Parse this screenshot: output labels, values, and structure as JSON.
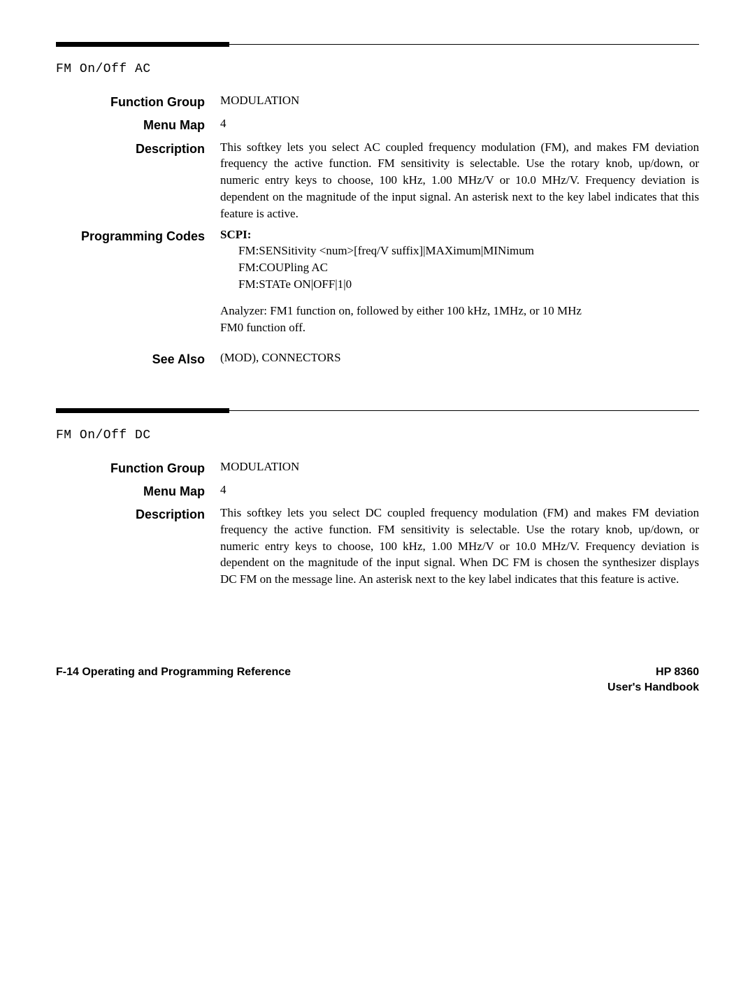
{
  "section1": {
    "title": "FM On/Off AC",
    "functionGroup": {
      "label": "Function Group",
      "value": "MODULATION"
    },
    "menuMap": {
      "label": "Menu Map",
      "value": "4"
    },
    "description": {
      "label": "Description",
      "text": "This softkey lets you select AC coupled frequency modulation (FM), and makes FM deviation frequency the active function. FM sensitivity is selectable. Use the rotary knob, up/down, or numeric entry keys to choose, 100 kHz, 1.00 MHz/V or 10.0 MHz/V. Frequency deviation is dependent on the magnitude of the input signal. An asterisk next to the key label indicates that this feature is active."
    },
    "programmingCodes": {
      "label": "Programming Codes",
      "scpiLabel": "SCPI:",
      "scpi1": "FM:SENSitivity <num>[freq/V suffix]|MAXimum|MINimum",
      "scpi2": "FM:COUPling AC",
      "scpi3": "FM:STATe ON|OFF|1|0",
      "analyzer1": "Analyzer: FM1 function on, followed by either 100 kHz, 1MHz, or 10 MHz",
      "analyzer2": "FM0 function off."
    },
    "seeAlso": {
      "label": "See Also",
      "value": "(MOD), CONNECTORS"
    }
  },
  "section2": {
    "title": "FM On/Off DC",
    "functionGroup": {
      "label": "Function Group",
      "value": "MODULATION"
    },
    "menuMap": {
      "label": "Menu Map",
      "value": "4"
    },
    "description": {
      "label": "Description",
      "text": "This softkey lets you select DC coupled frequency modulation (FM) and makes FM deviation frequency the active function. FM sensitivity is selectable. Use the rotary knob, up/down, or numeric entry keys to choose, 100 kHz, 1.00 MHz/V or 10.0 MHz/V. Frequency deviation is dependent on the magnitude of the input signal. When DC FM is chosen the synthesizer displays DC FM on the message line. An asterisk next to the key label indicates that this feature is active."
    }
  },
  "footer": {
    "leftBold": "F-14 ",
    "leftRest": "Operating and Programming Reference",
    "right1": "HP 8360",
    "right2": "User's Handbook"
  }
}
